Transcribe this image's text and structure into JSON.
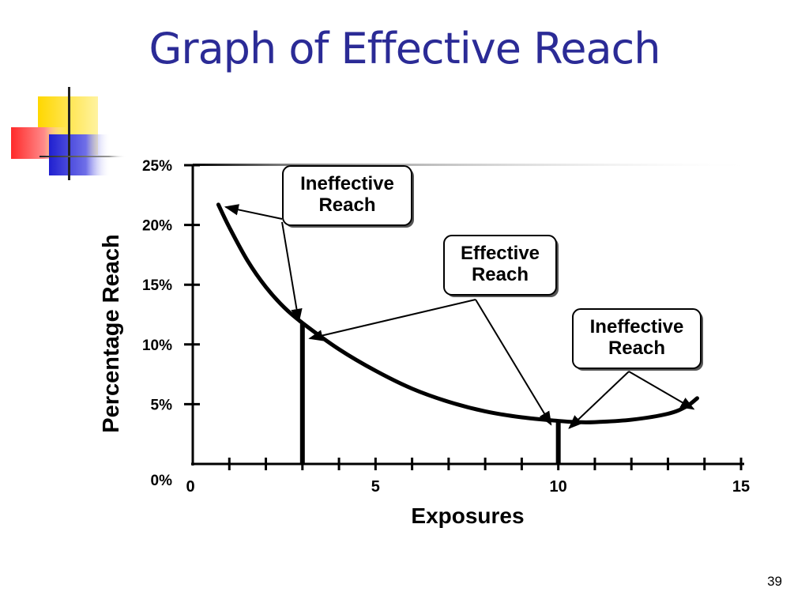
{
  "slide": {
    "title": "Graph of Effective Reach",
    "page_number": "39"
  },
  "colors": {
    "title": "#2b2b96",
    "deco_yellow": "#ffd700",
    "deco_red": "#ff3b3b",
    "deco_blue": "#2f2fd8",
    "axis": "#000000"
  },
  "chart_data": {
    "type": "line",
    "title": "",
    "xlabel": "Exposures",
    "ylabel": "Percentage Reach",
    "xlim": [
      0,
      15
    ],
    "ylim": [
      0,
      25
    ],
    "x_tick_labels": [
      "0",
      "5",
      "10",
      "15"
    ],
    "x_tick_label_values": [
      0,
      5,
      10,
      15
    ],
    "x_minor_ticks": [
      0,
      1,
      2,
      3,
      4,
      5,
      6,
      7,
      8,
      9,
      10,
      11,
      12,
      13,
      14,
      15
    ],
    "y_tick_labels": [
      "0%",
      "5%",
      "10%",
      "15%",
      "20%",
      "25%"
    ],
    "y_tick_values": [
      0,
      5,
      10,
      15,
      20,
      25
    ],
    "grid": false,
    "series": [
      {
        "x": [
          0.7,
          1.0,
          1.5,
          2.0,
          2.5,
          3.0,
          4.0,
          5.0,
          6.0,
          7.0,
          8.0,
          9.0,
          10.0,
          10.5,
          11.0,
          12.0,
          13.0,
          13.5,
          13.8
        ],
        "y": [
          21.7,
          19.8,
          17.0,
          14.8,
          13.1,
          11.8,
          9.6,
          7.8,
          6.3,
          5.2,
          4.4,
          3.9,
          3.6,
          3.5,
          3.5,
          3.7,
          4.2,
          4.8,
          5.5
        ]
      }
    ],
    "markers": [
      {
        "x": 3,
        "y": 11.8
      },
      {
        "x": 10,
        "y": 3.6
      }
    ],
    "annotations": [
      {
        "line1": "Ineffective",
        "line2": "Reach",
        "targets": [
          {
            "x": 0.9,
            "y": 21.5
          },
          {
            "x": 2.9,
            "y": 11.9
          }
        ]
      },
      {
        "line1": "Effective",
        "line2": "Reach",
        "targets": [
          {
            "x": 3.2,
            "y": 10.5
          },
          {
            "x": 9.8,
            "y": 3.3
          }
        ]
      },
      {
        "line1": "Ineffective",
        "line2": "Reach",
        "targets": [
          {
            "x": 10.3,
            "y": 3.0
          },
          {
            "x": 13.7,
            "y": 4.6
          }
        ]
      }
    ]
  }
}
